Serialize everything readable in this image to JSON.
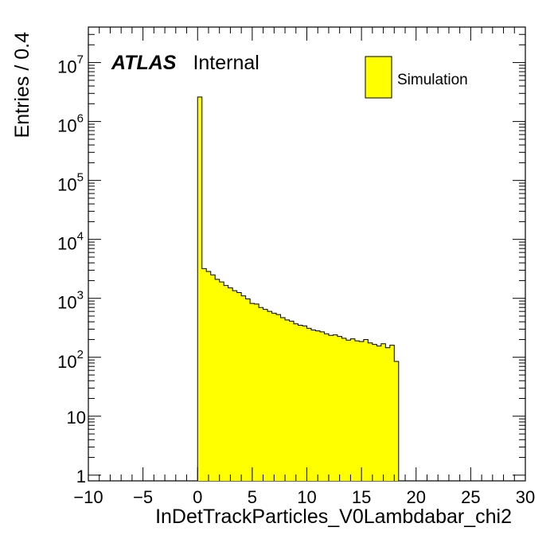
{
  "chart_data": {
    "type": "bar",
    "xlabel": "InDetTrackParticles_V0Lambdabar_chi2",
    "ylabel": "Entries / 0.4",
    "xlim": [
      -10,
      30
    ],
    "ylim": [
      0.8,
      40000000
    ],
    "yscale": "log",
    "bin_width": 0.4,
    "x_ticks": [
      "−10",
      "−5",
      "0",
      "5",
      "10",
      "15",
      "20",
      "25",
      "30"
    ],
    "y_ticks": [
      {
        "base": "1",
        "exp": ""
      },
      {
        "base": "10",
        "exp": ""
      },
      {
        "base": "10",
        "exp": "2"
      },
      {
        "base": "10",
        "exp": "3"
      },
      {
        "base": "10",
        "exp": "4"
      },
      {
        "base": "10",
        "exp": "5"
      },
      {
        "base": "10",
        "exp": "6"
      },
      {
        "base": "10",
        "exp": "7"
      }
    ],
    "bin_starts": [
      0.0,
      0.4,
      0.8,
      1.2,
      1.6,
      2.0,
      2.4,
      2.8,
      3.2,
      3.6,
      4.0,
      4.4,
      4.8,
      5.2,
      5.6,
      6.0,
      6.4,
      6.8,
      7.2,
      7.6,
      8.0,
      8.4,
      8.8,
      9.2,
      9.6,
      10.0,
      10.4,
      10.8,
      11.2,
      11.6,
      12.0,
      12.4,
      12.8,
      13.2,
      13.6,
      14.0,
      14.4,
      14.8,
      15.2,
      15.6,
      16.0,
      16.4,
      16.8,
      17.2,
      17.6,
      18.0
    ],
    "series": [
      {
        "name": "Simulation",
        "color": "#ffff00",
        "values": [
          2600000,
          3200,
          2850,
          2500,
          2100,
          1900,
          1650,
          1500,
          1350,
          1250,
          1100,
          980,
          820,
          800,
          700,
          650,
          600,
          560,
          530,
          470,
          430,
          410,
          370,
          350,
          340,
          310,
          290,
          280,
          270,
          250,
          235,
          240,
          225,
          210,
          195,
          205,
          190,
          185,
          200,
          175,
          165,
          155,
          170,
          145,
          160,
          85
        ]
      }
    ],
    "legend": {
      "position": "top-right",
      "label": "Simulation"
    },
    "atlas_label": {
      "bold": "ATLAS",
      "text": "Internal"
    }
  }
}
